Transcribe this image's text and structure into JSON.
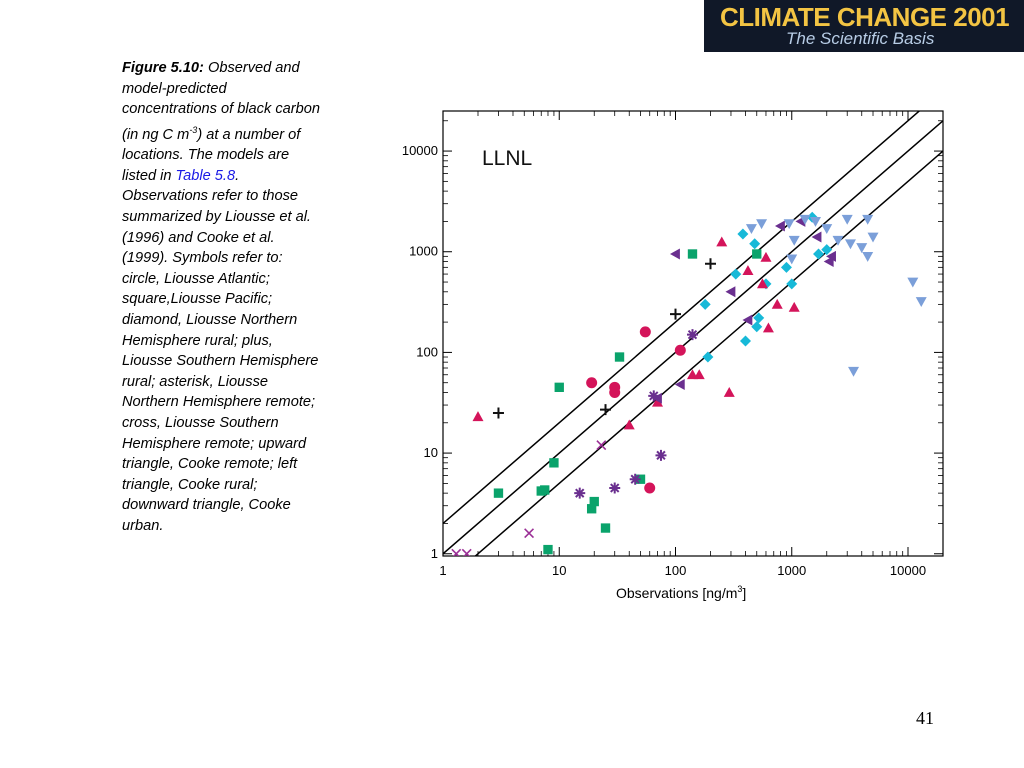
{
  "banner": {
    "title": "CLIMATE CHANGE 2001",
    "subtitle": "The Scientific Basis",
    "bg_color": "#101828",
    "title_color": "#f3c443",
    "subtitle_color": "#b8cde6"
  },
  "caption": {
    "label": "Figure 5.10:",
    "part1": " Observed and model-predicted concentrations of black carbon (in ng C m",
    "sup": "-3",
    "part2": ") at a number of locations. The models are listed in ",
    "link_text": "Table 5.8",
    "part3": ". Observations refer to those summarized by Liousse et al. (1996) and Cooke et al. (1999). Symbols refer to: circle, Liousse Atlantic; square,Liousse Pacific; diamond, Liousse Northern Hemisphere rural; plus, Liousse Southern Hemisphere rural; asterisk, Liousse Northern Hemisphere remote; cross, Liousse Southern Hemisphere remote; upward triangle, Cooke remote; left triangle, Cooke rural; downward triangle, Cooke urban."
  },
  "page_number": "41",
  "chart_data": {
    "type": "scatter",
    "title": "LLNL",
    "xlabel": "Observations [ng/m",
    "xlabel_sup": "3",
    "xlabel_end": "]",
    "ylabel": "",
    "x_scale": "log",
    "y_scale": "log",
    "xlim": [
      1,
      20000
    ],
    "ylim": [
      0.95,
      25000
    ],
    "x_ticks": [
      {
        "value": 1,
        "label": "1"
      },
      {
        "value": 10,
        "label": "10"
      },
      {
        "value": 100,
        "label": "100"
      },
      {
        "value": 1000,
        "label": "1000"
      },
      {
        "value": 10000,
        "label": "10000"
      }
    ],
    "y_ticks": [
      {
        "value": 1,
        "label": "1"
      },
      {
        "value": 10,
        "label": "10"
      },
      {
        "value": 100,
        "label": "100"
      },
      {
        "value": 1000,
        "label": "1000"
      },
      {
        "value": 10000,
        "label": "10000"
      }
    ],
    "reference_lines": [
      {
        "factor": 0.5
      },
      {
        "factor": 1
      },
      {
        "factor": 2
      }
    ],
    "grid": false,
    "series": [
      {
        "marker": "circle",
        "color": "#d4145a",
        "points": [
          {
            "x": 19,
            "y": 50
          },
          {
            "x": 30,
            "y": 45
          },
          {
            "x": 30,
            "y": 40
          },
          {
            "x": 55,
            "y": 160
          },
          {
            "x": 110,
            "y": 105
          },
          {
            "x": 60,
            "y": 4.5
          }
        ]
      },
      {
        "marker": "square",
        "color": "#0aa36b",
        "points": [
          {
            "x": 3,
            "y": 4
          },
          {
            "x": 7,
            "y": 4.2
          },
          {
            "x": 7.5,
            "y": 4.3
          },
          {
            "x": 8,
            "y": 1.1
          },
          {
            "x": 9,
            "y": 8
          },
          {
            "x": 10,
            "y": 45
          },
          {
            "x": 19,
            "y": 2.8
          },
          {
            "x": 20,
            "y": 3.3
          },
          {
            "x": 25,
            "y": 1.8
          },
          {
            "x": 33,
            "y": 90
          },
          {
            "x": 50,
            "y": 5.5
          },
          {
            "x": 140,
            "y": 950
          },
          {
            "x": 500,
            "y": 950
          }
        ]
      },
      {
        "marker": "diamond",
        "color": "#17b9d8",
        "points": [
          {
            "x": 180,
            "y": 300
          },
          {
            "x": 190,
            "y": 90
          },
          {
            "x": 330,
            "y": 600
          },
          {
            "x": 380,
            "y": 1500
          },
          {
            "x": 400,
            "y": 130
          },
          {
            "x": 480,
            "y": 1200
          },
          {
            "x": 500,
            "y": 180
          },
          {
            "x": 520,
            "y": 220
          },
          {
            "x": 600,
            "y": 480
          },
          {
            "x": 900,
            "y": 700
          },
          {
            "x": 1000,
            "y": 480
          },
          {
            "x": 1500,
            "y": 2200
          },
          {
            "x": 1700,
            "y": 950
          },
          {
            "x": 2000,
            "y": 1050
          }
        ]
      },
      {
        "marker": "plus",
        "color": "#111111",
        "points": [
          {
            "x": 3,
            "y": 25
          },
          {
            "x": 25,
            "y": 27
          },
          {
            "x": 100,
            "y": 240
          },
          {
            "x": 200,
            "y": 760
          }
        ]
      },
      {
        "marker": "asterisk",
        "color": "#6a2f8f",
        "points": [
          {
            "x": 15,
            "y": 4
          },
          {
            "x": 30,
            "y": 4.5
          },
          {
            "x": 45,
            "y": 5.5
          },
          {
            "x": 65,
            "y": 37
          },
          {
            "x": 75,
            "y": 9.5
          },
          {
            "x": 140,
            "y": 150
          }
        ]
      },
      {
        "marker": "cross",
        "color": "#9b2f96",
        "points": [
          {
            "x": 1.3,
            "y": 1
          },
          {
            "x": 1.6,
            "y": 1
          },
          {
            "x": 5.5,
            "y": 1.6
          },
          {
            "x": 23,
            "y": 12
          }
        ]
      },
      {
        "marker": "triangle-up",
        "color": "#d4145a",
        "points": [
          {
            "x": 2,
            "y": 23
          },
          {
            "x": 40,
            "y": 19
          },
          {
            "x": 70,
            "y": 32
          },
          {
            "x": 140,
            "y": 60
          },
          {
            "x": 160,
            "y": 60
          },
          {
            "x": 250,
            "y": 1250
          },
          {
            "x": 290,
            "y": 40
          },
          {
            "x": 420,
            "y": 650
          },
          {
            "x": 560,
            "y": 480
          },
          {
            "x": 600,
            "y": 880
          },
          {
            "x": 630,
            "y": 175
          },
          {
            "x": 750,
            "y": 300
          },
          {
            "x": 1050,
            "y": 280
          }
        ]
      },
      {
        "marker": "triangle-left",
        "color": "#6a2f8f",
        "points": [
          {
            "x": 100,
            "y": 950
          },
          {
            "x": 70,
            "y": 35
          },
          {
            "x": 110,
            "y": 48
          },
          {
            "x": 300,
            "y": 400
          },
          {
            "x": 420,
            "y": 210
          },
          {
            "x": 800,
            "y": 1800
          },
          {
            "x": 1200,
            "y": 2000
          },
          {
            "x": 1650,
            "y": 1400
          },
          {
            "x": 2100,
            "y": 800
          },
          {
            "x": 2200,
            "y": 900
          }
        ]
      },
      {
        "marker": "triangle-down",
        "color": "#7b9fd9",
        "points": [
          {
            "x": 450,
            "y": 1700
          },
          {
            "x": 550,
            "y": 1900
          },
          {
            "x": 950,
            "y": 1900
          },
          {
            "x": 1000,
            "y": 850
          },
          {
            "x": 1050,
            "y": 1300
          },
          {
            "x": 1300,
            "y": 2100
          },
          {
            "x": 1600,
            "y": 2000
          },
          {
            "x": 2000,
            "y": 1700
          },
          {
            "x": 2500,
            "y": 1300
          },
          {
            "x": 3000,
            "y": 2100
          },
          {
            "x": 3200,
            "y": 1200
          },
          {
            "x": 3400,
            "y": 65
          },
          {
            "x": 4000,
            "y": 1100
          },
          {
            "x": 4500,
            "y": 900
          },
          {
            "x": 4500,
            "y": 2100
          },
          {
            "x": 5000,
            "y": 1400
          },
          {
            "x": 11000,
            "y": 500
          },
          {
            "x": 13000,
            "y": 320
          }
        ]
      }
    ]
  }
}
